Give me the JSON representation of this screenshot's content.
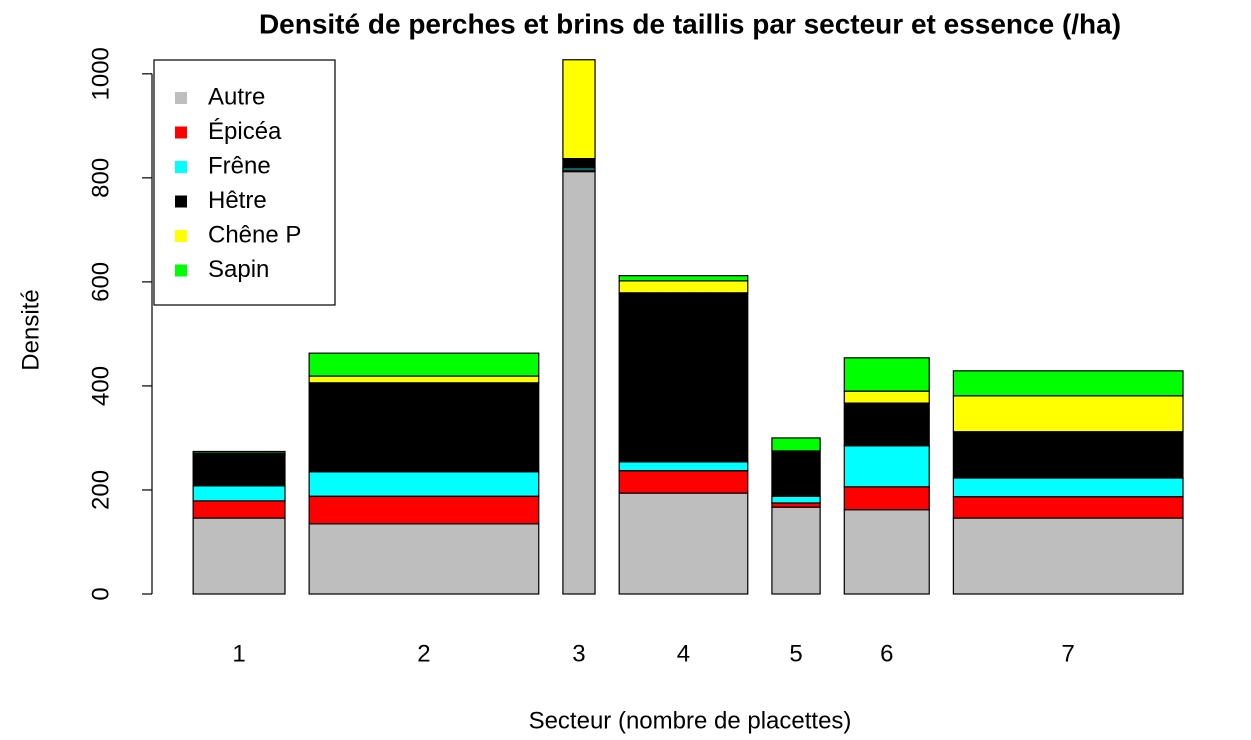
{
  "chart_data": {
    "type": "stacked_bar",
    "title": "Densité de perches et brins de taillis par secteur et essence (/ha)",
    "xlabel": "Secteur (nombre de placettes)",
    "ylabel": "Densité",
    "categories": [
      "1",
      "2",
      "3",
      "4",
      "5",
      "6",
      "7"
    ],
    "widths": [
      4,
      10,
      1.4,
      5.6,
      2.1,
      3.7,
      10
    ],
    "series": [
      {
        "name": "Autre",
        "color": "#bebebe",
        "values": [
          146,
          135,
          812,
          194,
          167,
          162,
          146
        ]
      },
      {
        "name": "Épicéa",
        "color": "#ff0000",
        "values": [
          33,
          53,
          3,
          43,
          8,
          44,
          41
        ]
      },
      {
        "name": "Frêne",
        "color": "#00ffff",
        "values": [
          29,
          47,
          4,
          17,
          13,
          79,
          36
        ]
      },
      {
        "name": "Hêtre",
        "color": "#000000",
        "values": [
          61,
          171,
          18,
          325,
          87,
          82,
          89
        ]
      },
      {
        "name": "Chêne P",
        "color": "#ffff00",
        "values": [
          2,
          13,
          190,
          23,
          0,
          23,
          69
        ]
      },
      {
        "name": "Sapin",
        "color": "#00ff00",
        "values": [
          3,
          44,
          0,
          10,
          25,
          64,
          48
        ]
      }
    ],
    "ylim": [
      0,
      1040
    ],
    "yticks": [
      0,
      200,
      400,
      600,
      800,
      1000
    ],
    "legend": "top-left"
  }
}
